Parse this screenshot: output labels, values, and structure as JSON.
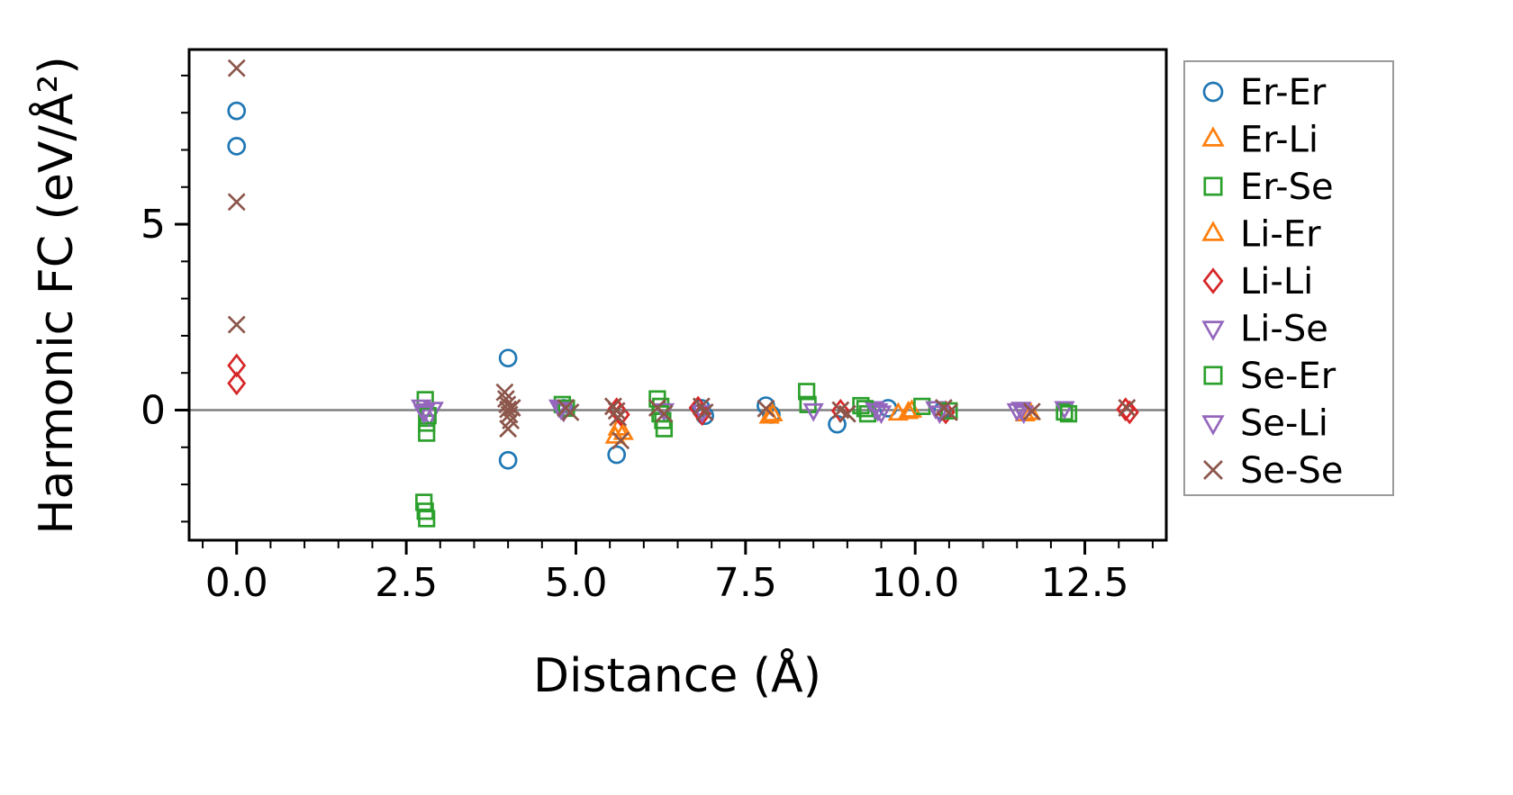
{
  "chart_data": {
    "type": "scatter",
    "title": "",
    "x_axis": {
      "label": "Distance (Å)",
      "lim": [
        -0.7,
        13.7
      ],
      "major_ticks": [
        0,
        2.5,
        5,
        7.5,
        10,
        12.5
      ],
      "major_labels": [
        "0.0",
        "2.5",
        "5.0",
        "7.5",
        "10.0",
        "12.5"
      ],
      "minor_step": 0.5
    },
    "y_axis": {
      "label": "Harmonic FC (eV/Å²)",
      "lim": [
        -3.5,
        9.7
      ],
      "major_ticks": [
        0,
        5
      ],
      "major_labels": [
        "0",
        "5"
      ],
      "minor_step": 1
    },
    "zero_line": {
      "y": 0,
      "color": "#808080"
    },
    "legend_position": "outside-right",
    "series": [
      {
        "name": "Er-Er",
        "color": "#1f77b4",
        "marker": "circle",
        "points": [
          [
            0,
            8.05
          ],
          [
            0,
            7.1
          ],
          [
            4.0,
            1.4
          ],
          [
            4.0,
            -1.35
          ],
          [
            4.82,
            0.05
          ],
          [
            5.6,
            -1.2
          ],
          [
            6.85,
            0.05
          ],
          [
            6.9,
            -0.15
          ],
          [
            7.8,
            0.12
          ],
          [
            7.88,
            -0.12
          ],
          [
            8.85,
            -0.38
          ],
          [
            9.6,
            0.05
          ],
          [
            10.4,
            -0.02
          ]
        ]
      },
      {
        "name": "Er-Li",
        "color": "#ff7f0e",
        "marker": "triangle-up",
        "points": [
          [
            5.62,
            -0.5
          ],
          [
            5.7,
            -0.62
          ],
          [
            7.9,
            -0.12
          ],
          [
            9.75,
            -0.1
          ],
          [
            9.95,
            -0.02
          ],
          [
            11.7,
            -0.08
          ]
        ]
      },
      {
        "name": "Er-Se",
        "color": "#2ca02c",
        "marker": "square",
        "points": [
          [
            2.78,
            0.28
          ],
          [
            2.8,
            -0.35
          ],
          [
            2.8,
            -0.62
          ],
          [
            2.76,
            -2.48
          ],
          [
            2.78,
            -2.72
          ],
          [
            2.8,
            -2.92
          ],
          [
            4.8,
            0.15
          ],
          [
            6.2,
            0.3
          ],
          [
            6.25,
            0.1
          ],
          [
            6.28,
            -0.28
          ],
          [
            6.3,
            -0.5
          ],
          [
            8.4,
            0.5
          ],
          [
            8.42,
            0.15
          ],
          [
            9.2,
            0.12
          ],
          [
            9.3,
            -0.1
          ],
          [
            10.1,
            0.1
          ],
          [
            12.2,
            -0.05
          ]
        ]
      },
      {
        "name": "Li-Er",
        "color": "#ff7f0e",
        "marker": "triangle-up",
        "points": [
          [
            5.58,
            -0.72
          ],
          [
            7.85,
            -0.18
          ],
          [
            9.9,
            -0.06
          ],
          [
            11.62,
            -0.12
          ]
        ]
      },
      {
        "name": "Li-Li",
        "color": "#d62728",
        "marker": "diamond",
        "points": [
          [
            0,
            1.2
          ],
          [
            0,
            0.72
          ],
          [
            5.6,
            0.02
          ],
          [
            5.66,
            -0.12
          ],
          [
            6.8,
            0.06
          ],
          [
            6.86,
            -0.1
          ],
          [
            8.9,
            -0.02
          ],
          [
            10.45,
            -0.06
          ],
          [
            13.1,
            0.02
          ],
          [
            13.16,
            -0.06
          ]
        ]
      },
      {
        "name": "Li-Se",
        "color": "#9467bd",
        "marker": "triangle-down",
        "points": [
          [
            2.72,
            0.1
          ],
          [
            2.78,
            0.0
          ],
          [
            2.84,
            -0.14
          ],
          [
            2.9,
            0.04
          ],
          [
            4.75,
            0.1
          ],
          [
            4.82,
            -0.02
          ],
          [
            6.3,
            0.0
          ],
          [
            8.5,
            0.0
          ],
          [
            9.4,
            0.06
          ],
          [
            9.5,
            -0.06
          ],
          [
            10.3,
            0.06
          ],
          [
            11.5,
            0.0
          ],
          [
            11.6,
            -0.06
          ],
          [
            12.2,
            0.06
          ]
        ]
      },
      {
        "name": "Se-Er",
        "color": "#2ca02c",
        "marker": "square",
        "points": [
          [
            2.82,
            -0.15
          ],
          [
            4.86,
            0.05
          ],
          [
            6.24,
            -0.1
          ],
          [
            9.26,
            0.04
          ],
          [
            10.5,
            -0.02
          ],
          [
            12.26,
            -0.1
          ]
        ]
      },
      {
        "name": "Se-Li",
        "color": "#9467bd",
        "marker": "triangle-down",
        "points": [
          [
            2.76,
            -0.06
          ],
          [
            4.78,
            0.04
          ],
          [
            6.86,
            -0.04
          ],
          [
            9.45,
            0.0
          ],
          [
            10.36,
            -0.06
          ],
          [
            11.56,
            0.04
          ]
        ]
      },
      {
        "name": "Se-Se",
        "color": "#8c564b",
        "marker": "x",
        "points": [
          [
            0,
            9.2
          ],
          [
            0,
            5.6
          ],
          [
            0,
            2.3
          ],
          [
            3.95,
            0.48
          ],
          [
            3.97,
            0.3
          ],
          [
            3.99,
            0.15
          ],
          [
            4.0,
            0.02
          ],
          [
            4.02,
            -0.12
          ],
          [
            4.04,
            -0.28
          ],
          [
            4.0,
            -0.5
          ],
          [
            4.06,
            0.06
          ],
          [
            4.85,
            0.06
          ],
          [
            4.92,
            -0.06
          ],
          [
            5.55,
            0.1
          ],
          [
            5.6,
            -0.02
          ],
          [
            5.62,
            -0.2
          ],
          [
            5.66,
            -0.82
          ],
          [
            6.2,
            0.06
          ],
          [
            6.3,
            -0.1
          ],
          [
            6.85,
            0.1
          ],
          [
            6.9,
            -0.06
          ],
          [
            7.8,
            0.04
          ],
          [
            8.9,
            0.0
          ],
          [
            9.0,
            -0.1
          ],
          [
            10.42,
            0.06
          ],
          [
            10.5,
            -0.06
          ],
          [
            11.72,
            -0.04
          ],
          [
            13.12,
            0.06
          ]
        ]
      }
    ]
  }
}
